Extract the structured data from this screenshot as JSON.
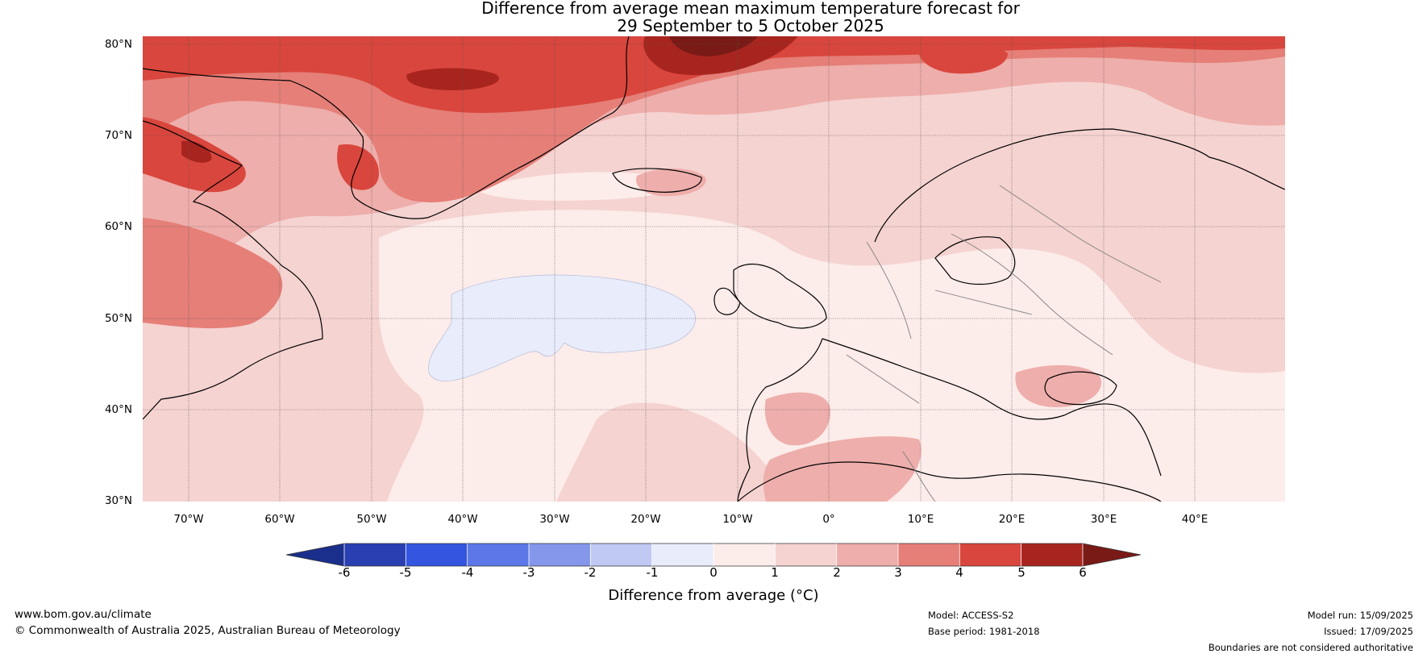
{
  "title_line1": "Difference from average mean maximum temperature forecast for",
  "title_line2": "29 September to 5 October 2025",
  "lat_labels": [
    "80°N",
    "70°N",
    "60°N",
    "50°N",
    "40°N",
    "30°N"
  ],
  "lon_labels": [
    "70°W",
    "60°W",
    "50°W",
    "40°W",
    "30°W",
    "20°W",
    "10°W",
    "0°",
    "10°E",
    "20°E",
    "30°E",
    "40°E"
  ],
  "colorbar": {
    "label": "Difference from average (°C)",
    "ticks": [
      "-6",
      "-5",
      "-4",
      "-3",
      "-2",
      "-1",
      "0",
      "1",
      "2",
      "3",
      "4",
      "5",
      "6"
    ],
    "under_color": "#1a2f8c",
    "over_color": "#7a1a16",
    "colors": [
      "#2a3fb2",
      "#3455e0",
      "#5c77e8",
      "#8497ea",
      "#bfc9f4",
      "#e8ecfb",
      "#fcecea",
      "#f5d3d1",
      "#eeaeab",
      "#e57f78",
      "#d9463d",
      "#a8251f"
    ]
  },
  "footer": {
    "website": "www.bom.gov.au/climate",
    "copyright": "© Commonwealth of Australia 2025, Australian Bureau of Meteorology",
    "model": "Model: ACCESS-S2",
    "base_period": "Base period: 1981-2018",
    "model_run": "Model run: 15/09/2025",
    "issued": "Issued: 17/09/2025",
    "disclaimer": "Boundaries are not considered authoritative"
  }
}
